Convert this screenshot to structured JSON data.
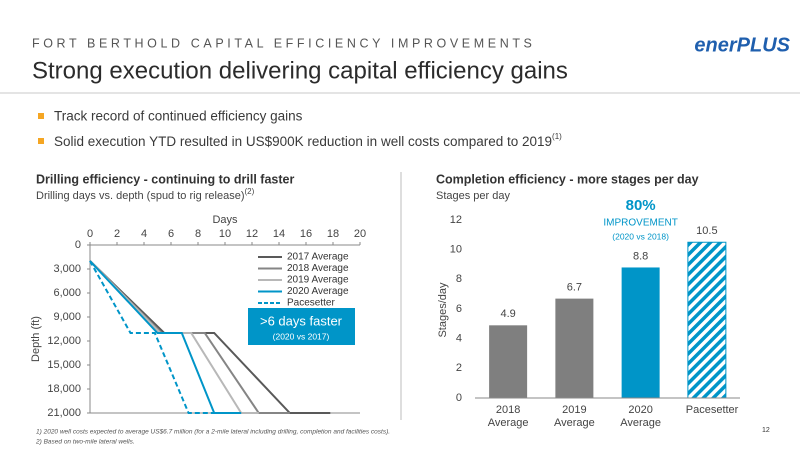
{
  "header": {
    "kicker": "FORT BERTHOLD CAPITAL EFFICIENCY IMPROVEMENTS",
    "title": "Strong execution delivering capital efficiency gains",
    "logo": "enerPLUS"
  },
  "bullets": [
    {
      "text": "Track record of continued efficiency gains"
    },
    {
      "text": "Solid execution YTD resulted in US$900K reduction in well costs compared to 2019",
      "note": "(1)"
    }
  ],
  "chart_data": [
    {
      "type": "line",
      "title": "Drilling efficiency - continuing to drill faster",
      "subtitle": "Drilling days vs. depth (spud to rig release)",
      "subtitle_note": "(2)",
      "x_label": "Days",
      "y_label": "Depth (ft)",
      "xlim": [
        0,
        20
      ],
      "xticks": [
        0,
        2,
        4,
        6,
        8,
        10,
        12,
        14,
        16,
        18,
        20
      ],
      "ylim": [
        0,
        21000
      ],
      "y_inverted": true,
      "yticks": [
        0,
        {
          "value": 3000,
          "label": "3,000"
        },
        {
          "value": 6000,
          "label": "6,000"
        },
        {
          "value": 9000,
          "label": "9,000"
        },
        {
          "value": 12000,
          "label": "12,000"
        },
        {
          "value": 15000,
          "label": "15,000"
        },
        {
          "value": 18000,
          "label": "18,000"
        },
        {
          "value": 21000,
          "label": "21,000"
        }
      ],
      "legend": "upper right",
      "series": [
        {
          "name": "2017 Average",
          "color": "#595959",
          "dashed": false,
          "x": [
            0,
            5.5,
            9.2,
            14.8,
            17.8
          ],
          "values": [
            2000,
            11000,
            11000,
            21000,
            21000
          ]
        },
        {
          "name": "2018 Average",
          "color": "#858585",
          "dashed": false,
          "x": [
            0,
            5.3,
            8.5,
            12.5,
            14.8
          ],
          "values": [
            2000,
            11000,
            11000,
            21000,
            21000
          ]
        },
        {
          "name": "2019 Average",
          "color": "#b8b8b8",
          "dashed": false,
          "x": [
            0,
            5.2,
            7.5,
            11.2,
            12.5
          ],
          "values": [
            2000,
            11000,
            11000,
            21000,
            21000
          ]
        },
        {
          "name": "2020 Average",
          "color": "#0095c8",
          "dashed": false,
          "x": [
            0,
            5.0,
            6.8,
            9.2,
            11.2
          ],
          "values": [
            2000,
            11000,
            11000,
            21000,
            21000
          ]
        },
        {
          "name": "Pacesetter",
          "color": "#0095c8",
          "dashed": true,
          "x": [
            0,
            3.0,
            4.8,
            7.3,
            9.2
          ],
          "values": [
            2000,
            11000,
            11000,
            21000,
            21000
          ]
        }
      ],
      "annotation": {
        "text": ">6 days faster",
        "note": "(2020 vs 2017)",
        "color": "#0095c8"
      }
    },
    {
      "type": "bar",
      "title": "Completion efficiency - more stages per day",
      "subtitle": "Stages per day",
      "y_label": "Stages/day",
      "categories": [
        "2018 Average",
        "2019 Average",
        "2020 Average",
        "Pacesetter"
      ],
      "values": [
        4.9,
        6.7,
        8.8,
        10.5
      ],
      "colors": [
        "#7f7f7f",
        "#7f7f7f",
        "#0095c8",
        "#0095c8"
      ],
      "hatched": [
        false,
        false,
        false,
        true
      ],
      "ylim": [
        0,
        12
      ],
      "yticks": [
        0,
        2,
        4,
        6,
        8,
        10,
        12
      ],
      "grid": false,
      "annotations": [
        {
          "text": "80%"
        },
        {
          "text": "IMPROVEMENT"
        },
        {
          "text": "(2020 vs 2018)"
        }
      ]
    }
  ],
  "footnotes": [
    "1)   2020 well costs expected to average US$6.7 million (for a 2-mile lateral including drilling, completion and facilities costs).",
    "2)   Based on two-mile lateral wells."
  ],
  "page_number": "12"
}
